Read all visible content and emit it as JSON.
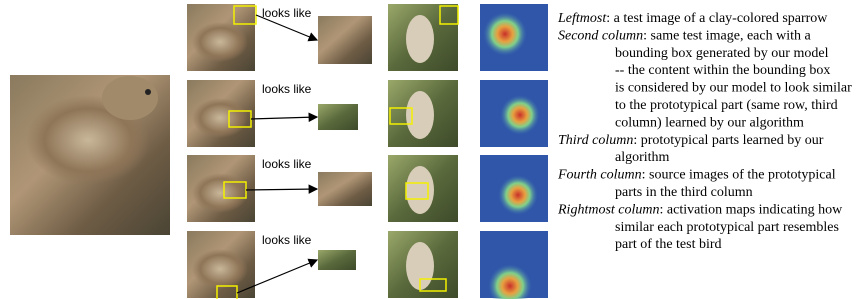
{
  "rows": [
    {
      "label": "looks like"
    },
    {
      "label": "looks like"
    },
    {
      "label": "looks like"
    },
    {
      "label": "looks like"
    }
  ],
  "legend": [
    {
      "term": "Leftmost",
      "lines": [
        ": a test image of a clay-colored sparrow"
      ]
    },
    {
      "term": "Second column",
      "lines": [
        ": same test image, each with a",
        "bounding box generated by our model",
        "-- the content within the bounding box",
        "is considered by our model to look similar",
        "to the prototypical part (same row, third",
        "column) learned by our algorithm"
      ]
    },
    {
      "term": "Third column",
      "lines": [
        ": prototypical parts learned by our",
        "algorithm"
      ]
    },
    {
      "term": "Fourth column",
      "lines": [
        ": source images of the prototypical",
        "parts in the third column"
      ]
    },
    {
      "term": "Rightmost column",
      "lines": [
        ": activation maps indicating how",
        "similar each prototypical part  resembles",
        "part of the test bird"
      ]
    }
  ]
}
